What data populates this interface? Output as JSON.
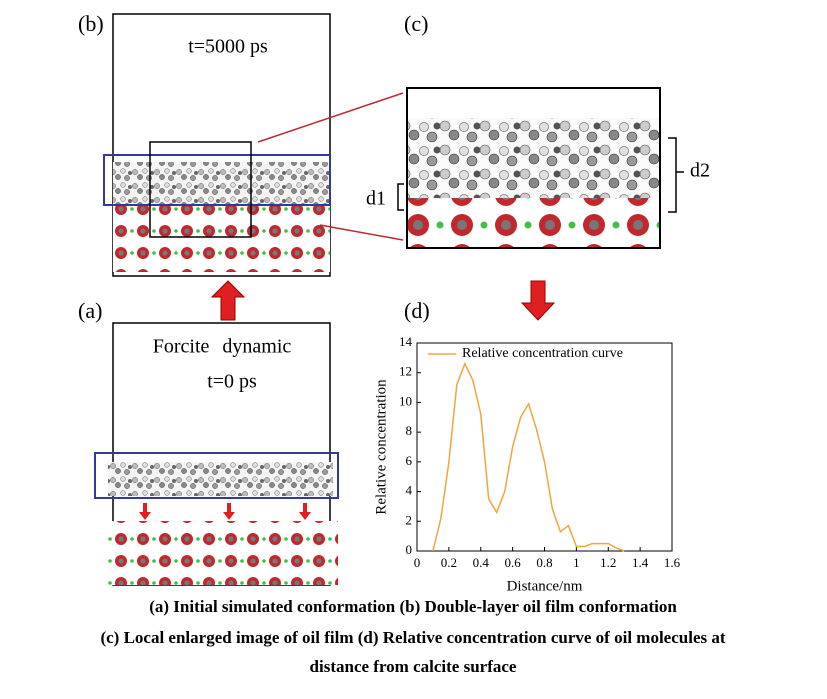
{
  "panels": {
    "a": {
      "label": "(a)",
      "method": "Forcite dynamic",
      "time": "t=0 ps"
    },
    "b": {
      "label": "(b)",
      "time": "t=5000 ps"
    },
    "c": {
      "label": "(c)",
      "d1": "d1",
      "d2": "d2"
    },
    "d": {
      "label": "(d)"
    }
  },
  "chart_data": {
    "type": "line",
    "x_label": "Distance/nm",
    "y_label": "Relative concentration",
    "x": [
      0.1,
      0.15,
      0.2,
      0.25,
      0.3,
      0.35,
      0.4,
      0.45,
      0.5,
      0.55,
      0.6,
      0.65,
      0.7,
      0.75,
      0.8,
      0.85,
      0.9,
      0.95,
      1.0,
      1.05,
      1.1,
      1.15,
      1.2,
      1.25,
      1.3
    ],
    "series": [
      {
        "name": "Relative concentration curve",
        "color": "#f0a63a",
        "values": [
          0,
          2.2,
          6,
          11.2,
          12.6,
          11.5,
          9.2,
          3.5,
          2.6,
          4,
          7,
          9,
          9.9,
          8.2,
          6,
          2.8,
          1.3,
          1.7,
          0.3,
          0.3,
          0.5,
          0.5,
          0.5,
          0.2,
          0
        ]
      }
    ],
    "xlim": [
      0,
      1.6
    ],
    "xticks": [
      0,
      0.2,
      0.4,
      0.6,
      0.8,
      1.0,
      1.2,
      1.4,
      1.6
    ],
    "ylim": [
      0,
      14
    ],
    "yticks": [
      0,
      2,
      4,
      6,
      8,
      10,
      12,
      14
    ],
    "legend": "upper right"
  },
  "caption": [
    "(a) Initial simulated conformation (b) Double-layer oil film conformation",
    "(c) Local enlarged image of oil film (d) Relative concentration curve of oil molecules at",
    "distance from calcite surface"
  ]
}
